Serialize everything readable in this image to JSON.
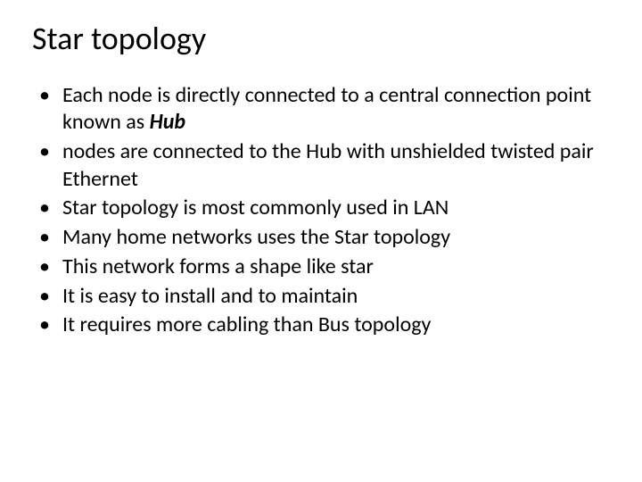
{
  "slide": {
    "title": "Star topology",
    "bullets": [
      {
        "pre": "Each node is directly connected to a central connection point known as ",
        "bold": "Hub",
        "post": ""
      },
      {
        "pre": "nodes are connected to the Hub with unshielded twisted pair Ethernet",
        "bold": "",
        "post": ""
      },
      {
        "pre": "Star topology is most commonly used in LAN",
        "bold": "",
        "post": ""
      },
      {
        "pre": "Many home networks uses the Star topology",
        "bold": "",
        "post": ""
      },
      {
        "pre": "This network forms a shape like star",
        "bold": "",
        "post": ""
      },
      {
        "pre": "It is easy to install and to maintain",
        "bold": "",
        "post": ""
      },
      {
        "pre": "It requires more cabling than Bus topology",
        "bold": "",
        "post": ""
      }
    ],
    "title_fontsize": 36,
    "body_fontsize": 24,
    "text_color": "#000000",
    "background_color": "#ffffff"
  }
}
